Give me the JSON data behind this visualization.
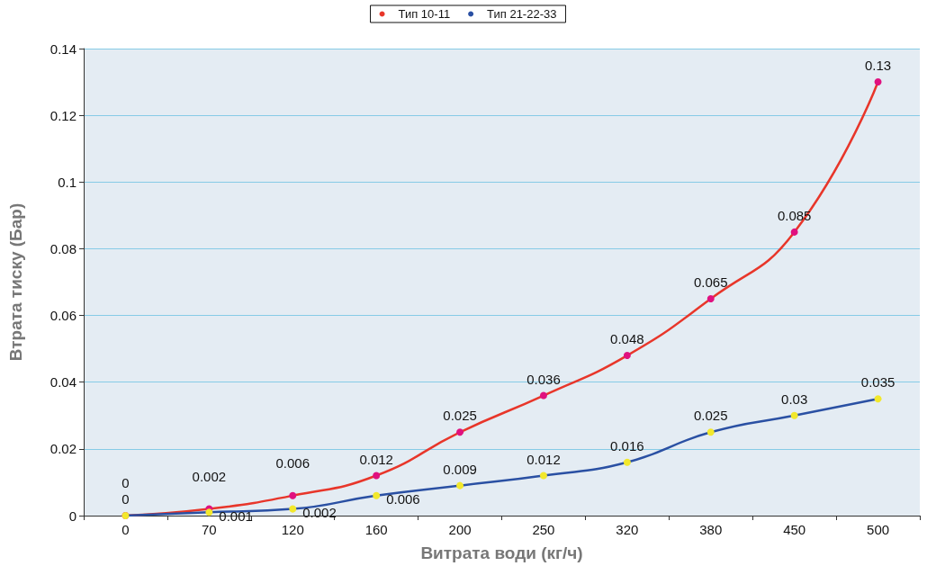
{
  "chart_data": {
    "type": "line",
    "xlabel": "Витрата води (кг/ч)",
    "ylabel": "Втрата тиску (Бар)",
    "categories": [
      "0",
      "70",
      "120",
      "160",
      "200",
      "250",
      "320",
      "380",
      "450",
      "500"
    ],
    "series": [
      {
        "name": "Тип 10-11",
        "color": "#e8362a",
        "colors": [
          "#e0117f",
          "#e0117f",
          "#e0117f",
          "#e0117f",
          "#e0117f",
          "#e0117f",
          "#e0117f",
          "#e0117f",
          "#e0117f",
          "#e0117f"
        ],
        "values": [
          0,
          0.002,
          0.006,
          0.012,
          0.025,
          0.036,
          0.048,
          0.065,
          0.085,
          0.13
        ]
      },
      {
        "name": "Тип 21-22-33",
        "color": "#2a50a3",
        "colors": [
          "#f2e82c",
          "#f2e82c",
          "#f2e82c",
          "#f2e82c",
          "#f2e82c",
          "#f2e82c",
          "#f2e82c",
          "#f2e82c",
          "#f2e82c",
          "#f2e82c"
        ],
        "values": [
          0,
          0.001,
          0.002,
          0.006,
          0.009,
          0.012,
          0.016,
          0.025,
          0.03,
          0.035
        ]
      }
    ],
    "ylim": [
      0,
      0.14
    ],
    "yticks": [
      0,
      0.02,
      0.04,
      0.06,
      0.08,
      0.1,
      0.12,
      0.14
    ],
    "grid": "y",
    "legend": "top",
    "marker": "circle",
    "line_style": "solid",
    "data_labels": true
  }
}
